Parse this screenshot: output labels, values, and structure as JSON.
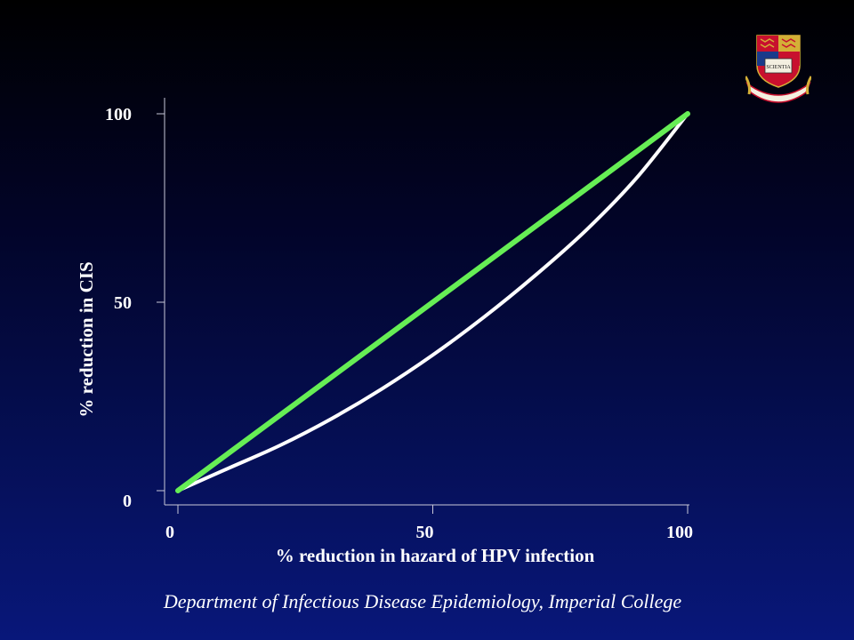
{
  "chart_data": {
    "type": "line",
    "xlabel": "% reduction in hazard of HPV infection",
    "ylabel": "% reduction in CIS",
    "xlim": [
      0,
      100
    ],
    "ylim": [
      0,
      100
    ],
    "x_ticks": [
      "0",
      "50",
      "100"
    ],
    "y_ticks": [
      "0",
      "50",
      "100"
    ],
    "grid": false,
    "legend": "none",
    "series": [
      {
        "color": "#66ee55",
        "x": [
          0,
          100
        ],
        "y": [
          0,
          100
        ]
      },
      {
        "color": "#ffffff",
        "x": [
          0,
          10,
          20,
          30,
          40,
          50,
          60,
          70,
          80,
          90,
          100
        ],
        "y": [
          0,
          6,
          12,
          19,
          27,
          36,
          46,
          57,
          69,
          83,
          100
        ]
      }
    ]
  },
  "footer": {
    "text": "Department of Infectious Disease Epidemiology, Imperial College"
  },
  "logo": {
    "name": "imperial-college-crest-icon",
    "motto": "SCIENTIA"
  }
}
